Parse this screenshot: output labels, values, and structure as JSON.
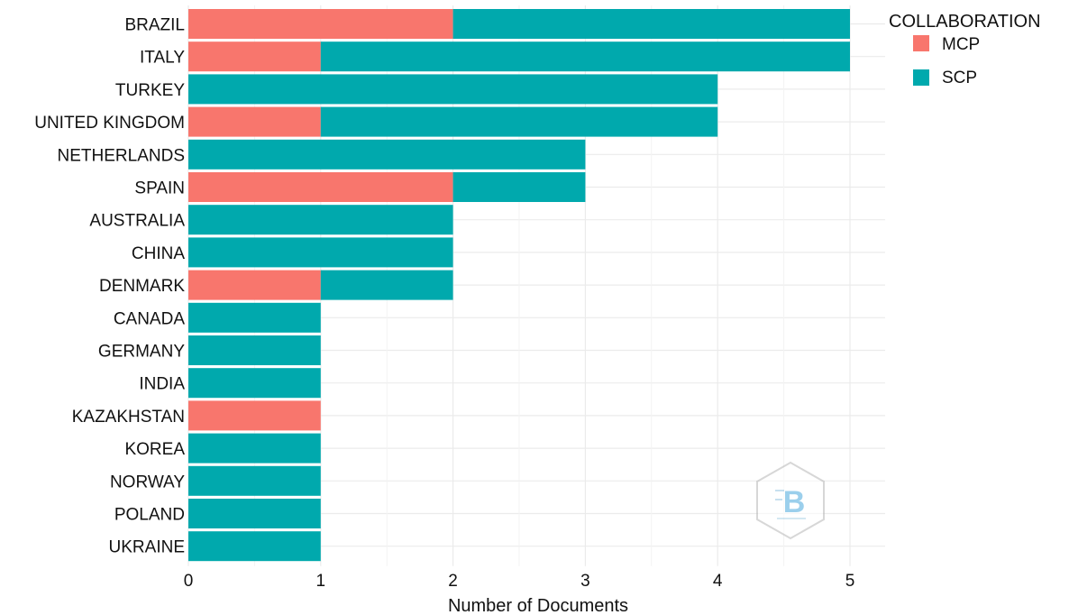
{
  "chart_data": {
    "type": "bar",
    "orientation": "horizontal",
    "stacked": true,
    "categories": [
      "BRAZIL",
      "ITALY",
      "TURKEY",
      "UNITED KINGDOM",
      "NETHERLANDS",
      "SPAIN",
      "AUSTRALIA",
      "CHINA",
      "DENMARK",
      "CANADA",
      "GERMANY",
      "INDIA",
      "KAZAKHSTAN",
      "KOREA",
      "NORWAY",
      "POLAND",
      "UKRAINE"
    ],
    "series": [
      {
        "name": "MCP",
        "color": "#f8766d",
        "values": [
          2,
          1,
          0,
          1,
          0,
          2,
          0,
          0,
          1,
          0,
          0,
          0,
          1,
          0,
          0,
          0,
          0
        ]
      },
      {
        "name": "SCP",
        "color": "#00a9ad",
        "values": [
          3,
          4,
          4,
          3,
          3,
          1,
          2,
          2,
          1,
          1,
          1,
          1,
          0,
          1,
          1,
          1,
          1
        ]
      }
    ],
    "xlabel": "Number of Documents",
    "ylabel": "",
    "xlim": [
      0,
      5.25
    ],
    "xticks": [
      "0",
      "1",
      "2",
      "3",
      "4",
      "5"
    ],
    "grid": true,
    "legend": {
      "title": "COLLABORATION",
      "placement": "top-right",
      "items": [
        "MCP",
        "SCP"
      ]
    },
    "watermark": "bibliometrix hexagon logo"
  }
}
